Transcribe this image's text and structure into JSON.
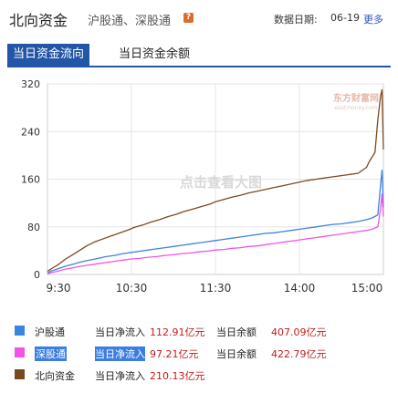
{
  "header": {
    "title": "北向资金",
    "subtitle": "沪股通、深股通",
    "help_glyph": "?",
    "date_label": "数据日期:",
    "date_value": "06-19",
    "more_label": "更多"
  },
  "tabs": [
    {
      "label": "当日资金流向",
      "active": true
    },
    {
      "label": "当日资金余额",
      "active": false
    }
  ],
  "watermark": {
    "overlay_text": "点击查看大图",
    "logo_text": "东方财富网",
    "logo_sub": "eastmoney.com"
  },
  "chart_data": {
    "type": "line",
    "title": "",
    "xlabel": "",
    "ylabel": "",
    "x_ticks": [
      "9:30",
      "10:30",
      "11:30",
      "14:00",
      "15:00"
    ],
    "y_ticks": [
      0,
      80,
      160,
      240,
      320
    ],
    "ylim": [
      0,
      320
    ],
    "grid": true,
    "series": [
      {
        "name": "北向资金",
        "color": "#7a4a1e",
        "x": [
          0,
          3,
          8,
          13,
          18,
          24,
          28,
          34,
          40,
          46,
          52,
          58,
          62,
          68,
          74,
          80,
          86,
          92,
          98,
          104,
          110,
          116,
          120,
          126,
          132,
          138,
          144,
          150,
          156,
          162,
          168,
          174,
          180,
          186,
          192,
          198,
          204,
          210,
          216,
          222,
          228,
          230,
          234,
          236,
          238,
          239,
          240
        ],
        "values": [
          5,
          10,
          17,
          26,
          33,
          42,
          48,
          55,
          60,
          65,
          70,
          75,
          79,
          83,
          88,
          92,
          97,
          101,
          106,
          110,
          114,
          118,
          122,
          126,
          130,
          133,
          137,
          140,
          143,
          146,
          149,
          152,
          155,
          158,
          160,
          162,
          164,
          166,
          168,
          170,
          180,
          190,
          205,
          260,
          300,
          310,
          210
        ]
      },
      {
        "name": "沪股通",
        "color": "#3b84e0",
        "x": [
          0,
          3,
          8,
          13,
          18,
          24,
          30,
          36,
          42,
          48,
          54,
          60,
          66,
          72,
          78,
          84,
          90,
          96,
          102,
          108,
          114,
          120,
          126,
          132,
          138,
          144,
          150,
          156,
          162,
          168,
          174,
          180,
          186,
          192,
          198,
          204,
          210,
          216,
          222,
          228,
          232,
          236,
          238,
          239,
          240
        ],
        "values": [
          2,
          6,
          10,
          14,
          17,
          21,
          24,
          27,
          30,
          32,
          35,
          37,
          39,
          41,
          43,
          45,
          47,
          49,
          51,
          53,
          55,
          57,
          59,
          61,
          63,
          65,
          67,
          69,
          70,
          72,
          74,
          76,
          78,
          80,
          82,
          84,
          85,
          87,
          89,
          92,
          95,
          100,
          150,
          175,
          113
        ]
      },
      {
        "name": "深股通",
        "color": "#f254e6",
        "x": [
          0,
          3,
          8,
          13,
          18,
          24,
          30,
          36,
          42,
          48,
          54,
          60,
          66,
          72,
          78,
          84,
          90,
          96,
          102,
          108,
          114,
          120,
          126,
          132,
          138,
          144,
          150,
          156,
          162,
          168,
          174,
          180,
          186,
          192,
          198,
          204,
          210,
          216,
          222,
          228,
          232,
          236,
          238,
          239,
          240
        ],
        "values": [
          1,
          3,
          6,
          9,
          11,
          14,
          16,
          18,
          20,
          22,
          24,
          26,
          27,
          29,
          30,
          32,
          33,
          35,
          36,
          38,
          39,
          41,
          42,
          44,
          45,
          47,
          48,
          50,
          52,
          54,
          56,
          58,
          60,
          62,
          64,
          66,
          68,
          70,
          72,
          74,
          76,
          80,
          110,
          135,
          97
        ]
      }
    ]
  },
  "legend": [
    {
      "name": "沪股通",
      "color": "#3b84e0",
      "inflow_label": "当日净流入",
      "inflow_value": "112.91亿元",
      "balance_label": "当日余额",
      "balance_value": "407.09亿元",
      "highlighted": false
    },
    {
      "name": "深股通",
      "color": "#f254e6",
      "inflow_label": "当日净流入",
      "inflow_value": "97.21亿元",
      "balance_label": "当日余额",
      "balance_value": "422.79亿元",
      "highlighted": true
    },
    {
      "name": "北向资金",
      "color": "#7a4a1e",
      "inflow_label": "当日净流入",
      "inflow_value": "210.13亿元",
      "highlighted": false
    }
  ]
}
